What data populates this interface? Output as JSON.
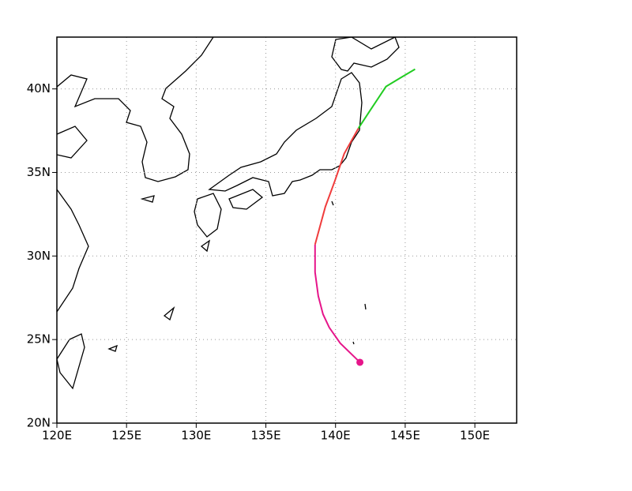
{
  "chart_data": {
    "type": "line",
    "xlim": [
      120,
      153
    ],
    "ylim": [
      20,
      43.1
    ],
    "xticks": [
      {
        "value": 120,
        "label": "120E"
      },
      {
        "value": 125,
        "label": "125E"
      },
      {
        "value": 130,
        "label": "130E"
      },
      {
        "value": 135,
        "label": "135E"
      },
      {
        "value": 140,
        "label": "140E"
      },
      {
        "value": 145,
        "label": "145E"
      },
      {
        "value": 150,
        "label": "150E"
      }
    ],
    "yticks": [
      {
        "value": 20,
        "label": "20N"
      },
      {
        "value": 25,
        "label": "25N"
      },
      {
        "value": 30,
        "label": "30N"
      },
      {
        "value": 35,
        "label": "35N"
      },
      {
        "value": 40,
        "label": "40N"
      }
    ],
    "grid": true,
    "series": [
      {
        "color": "#e6158a",
        "x": [
          141.75,
          140.34,
          139.55,
          139.1,
          138.76,
          138.53,
          138.53
        ],
        "y": [
          23.64,
          24.78,
          25.72,
          26.52,
          27.61,
          29.03,
          30.69
        ]
      },
      {
        "color": "#f03c3c",
        "x": [
          138.53,
          139.27,
          139.94,
          140.62,
          141.64
        ],
        "y": [
          30.69,
          32.95,
          34.47,
          36.12,
          37.64
        ]
      },
      {
        "color": "#22cc22",
        "x": [
          141.64,
          142.49,
          143.62,
          144.75,
          145.71
        ],
        "y": [
          37.64,
          38.72,
          40.14,
          40.71,
          41.18
        ]
      }
    ]
  }
}
